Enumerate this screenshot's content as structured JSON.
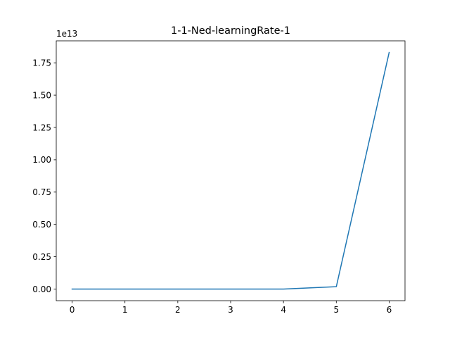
{
  "chart_data": {
    "type": "line",
    "title": "1-1-Ned-learningRate-1",
    "xlabel": "",
    "ylabel": "",
    "y_offset_label": "1e13",
    "y_scale": 10000000000000.0,
    "xlim": [
      -0.3,
      6.3
    ],
    "ylim": [
      -0.09,
      1.92
    ],
    "x_ticks": [
      0,
      1,
      2,
      3,
      4,
      5,
      6
    ],
    "x_tick_labels": [
      "0",
      "1",
      "2",
      "3",
      "4",
      "5",
      "6"
    ],
    "y_ticks": [
      0.0,
      0.25,
      0.5,
      0.75,
      1.0,
      1.25,
      1.5,
      1.75
    ],
    "y_tick_labels": [
      "0.00",
      "0.25",
      "0.50",
      "0.75",
      "1.00",
      "1.25",
      "1.50",
      "1.75"
    ],
    "grid": false,
    "series": [
      {
        "color": "#1f77b4",
        "x": [
          0,
          1,
          2,
          3,
          4,
          5,
          6
        ],
        "values": [
          0.0,
          0.0,
          0.0,
          0.0,
          0.0,
          0.018,
          1.83
        ]
      }
    ]
  }
}
